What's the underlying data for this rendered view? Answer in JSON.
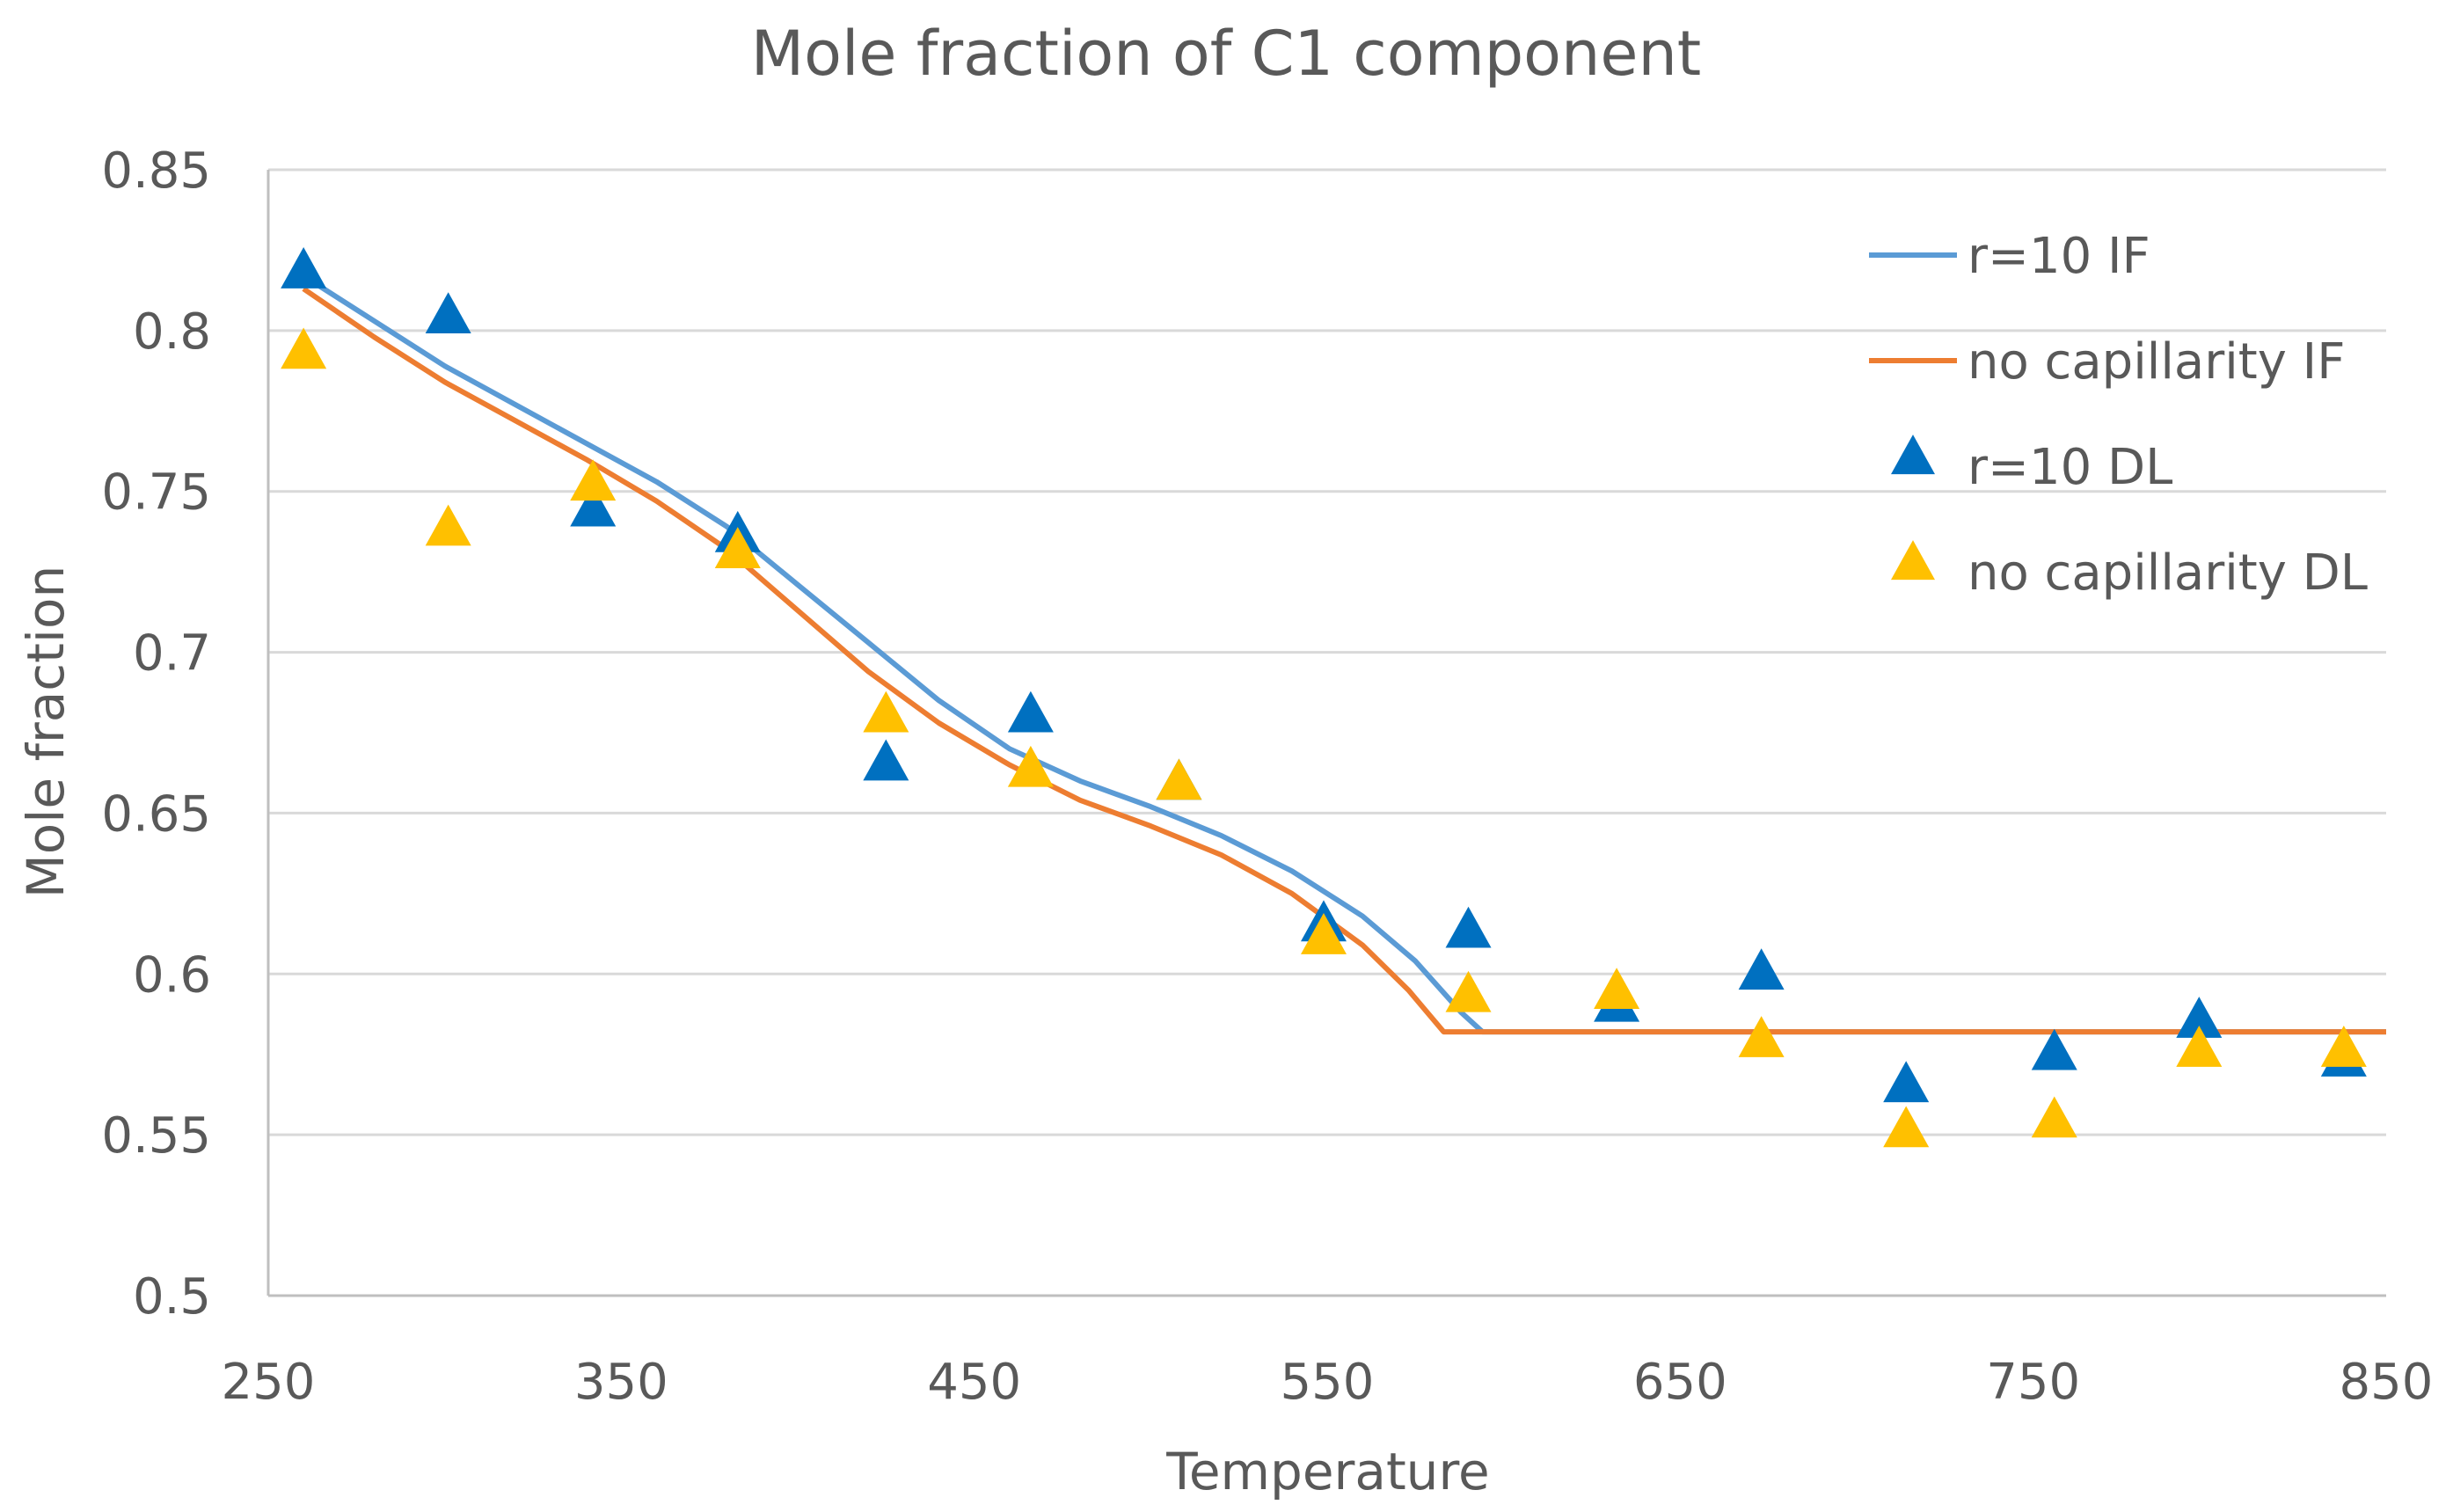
{
  "chart_data": {
    "type": "line",
    "title": "Mole fraction of C1 component",
    "xlabel": "Temperature",
    "ylabel": "Mole fraction",
    "xlim": [
      250,
      850
    ],
    "ylim": [
      0.5,
      0.85
    ],
    "grid": true,
    "legend_position": "top-right",
    "x_ticks": [
      {
        "value": 250,
        "label": "250"
      },
      {
        "value": 350,
        "label": "350"
      },
      {
        "value": 450,
        "label": "450"
      },
      {
        "value": 550,
        "label": "550"
      },
      {
        "value": 650,
        "label": "650"
      },
      {
        "value": 750,
        "label": "750"
      },
      {
        "value": 850,
        "label": "850"
      }
    ],
    "y_ticks": [
      {
        "value": 0.5,
        "label": "0.5"
      },
      {
        "value": 0.55,
        "label": "0.55"
      },
      {
        "value": 0.6,
        "label": "0.6"
      },
      {
        "value": 0.65,
        "label": "0.65"
      },
      {
        "value": 0.7,
        "label": "0.7"
      },
      {
        "value": 0.75,
        "label": "0.75"
      },
      {
        "value": 0.8,
        "label": "0.8"
      },
      {
        "value": 0.85,
        "label": "0.85"
      }
    ],
    "series": [
      {
        "name": "r=10 IF",
        "kind": "line",
        "color": "#5B9BD5",
        "points": [
          [
            260,
            0.817
          ],
          [
            280,
            0.803
          ],
          [
            300,
            0.789
          ],
          [
            320,
            0.777
          ],
          [
            340,
            0.765
          ],
          [
            360,
            0.753
          ],
          [
            380,
            0.739
          ],
          [
            400,
            0.721
          ],
          [
            420,
            0.703
          ],
          [
            440,
            0.685
          ],
          [
            460,
            0.67
          ],
          [
            480,
            0.66
          ],
          [
            500,
            0.652
          ],
          [
            520,
            0.643
          ],
          [
            540,
            0.632
          ],
          [
            560,
            0.618
          ],
          [
            575,
            0.604
          ],
          [
            588,
            0.588
          ],
          [
            594,
            0.582
          ],
          [
            850,
            0.582
          ]
        ]
      },
      {
        "name": "no capillarity IF",
        "kind": "line",
        "color": "#ED7D31",
        "points": [
          [
            260,
            0.813
          ],
          [
            280,
            0.798
          ],
          [
            300,
            0.784
          ],
          [
            320,
            0.772
          ],
          [
            340,
            0.76
          ],
          [
            360,
            0.747
          ],
          [
            380,
            0.732
          ],
          [
            400,
            0.713
          ],
          [
            420,
            0.694
          ],
          [
            440,
            0.678
          ],
          [
            460,
            0.665
          ],
          [
            480,
            0.654
          ],
          [
            500,
            0.646
          ],
          [
            520,
            0.637
          ],
          [
            540,
            0.625
          ],
          [
            560,
            0.609
          ],
          [
            573,
            0.595
          ],
          [
            583,
            0.582
          ],
          [
            850,
            0.582
          ]
        ]
      },
      {
        "name": "r=10 DL",
        "kind": "marker",
        "marker": "triangle",
        "color": "#0070C0",
        "points": [
          [
            260,
            0.818
          ],
          [
            301,
            0.804
          ],
          [
            342,
            0.744
          ],
          [
            383,
            0.736
          ],
          [
            425,
            0.665
          ],
          [
            466,
            0.68
          ],
          [
            508,
            0.659
          ],
          [
            549,
            0.615
          ],
          [
            590,
            0.613
          ],
          [
            632,
            0.59
          ],
          [
            673,
            0.6
          ],
          [
            714,
            0.565
          ],
          [
            756,
            0.575
          ],
          [
            797,
            0.585
          ],
          [
            838,
            0.573
          ]
        ]
      },
      {
        "name": "no capillarity DL",
        "kind": "marker",
        "marker": "triangle",
        "color": "#FFC000",
        "points": [
          [
            260,
            0.793
          ],
          [
            301,
            0.738
          ],
          [
            342,
            0.752
          ],
          [
            383,
            0.731
          ],
          [
            425,
            0.68
          ],
          [
            466,
            0.663
          ],
          [
            508,
            0.659
          ],
          [
            549,
            0.611
          ],
          [
            590,
            0.593
          ],
          [
            632,
            0.594
          ],
          [
            673,
            0.579
          ],
          [
            714,
            0.551
          ],
          [
            756,
            0.554
          ],
          [
            797,
            0.576
          ],
          [
            838,
            0.576
          ]
        ]
      }
    ]
  }
}
